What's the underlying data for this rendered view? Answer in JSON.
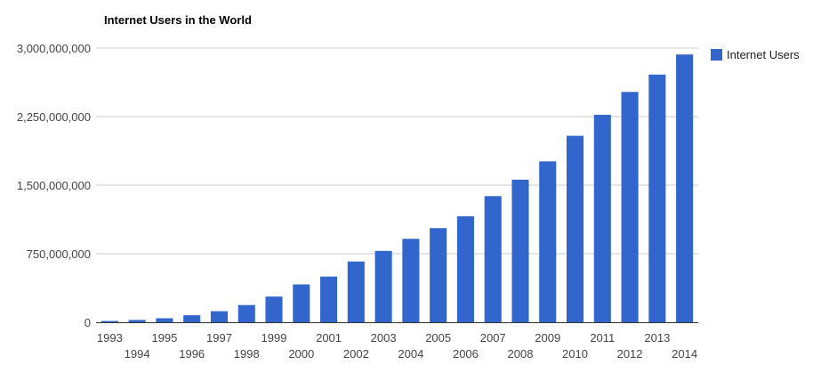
{
  "chart_data": {
    "type": "bar",
    "title": "Internet Users in the World",
    "xlabel": "",
    "ylabel": "",
    "categories": [
      "1993",
      "1994",
      "1995",
      "1996",
      "1997",
      "1998",
      "1999",
      "2000",
      "2001",
      "2002",
      "2003",
      "2004",
      "2005",
      "2006",
      "2007",
      "2008",
      "2009",
      "2010",
      "2011",
      "2012",
      "2013",
      "2014"
    ],
    "series": [
      {
        "name": "Internet Users",
        "color": "#3366cc",
        "values": [
          14000000,
          25000000,
          44000000,
          77000000,
          121000000,
          188000000,
          281000000,
          414000000,
          500000000,
          665000000,
          781000000,
          913000000,
          1030000000,
          1160000000,
          1380000000,
          1560000000,
          1760000000,
          2040000000,
          2270000000,
          2520000000,
          2710000000,
          2930000000
        ]
      }
    ],
    "y_ticks": [
      "0",
      "750,000,000",
      "1,500,000,000",
      "2,250,000,000",
      "3,000,000,000"
    ],
    "y_tick_values": [
      0,
      750000000,
      1500000000,
      2250000000,
      3000000000
    ],
    "ylim": [
      0,
      3000000000
    ],
    "grid": true,
    "legend_position": "right"
  }
}
